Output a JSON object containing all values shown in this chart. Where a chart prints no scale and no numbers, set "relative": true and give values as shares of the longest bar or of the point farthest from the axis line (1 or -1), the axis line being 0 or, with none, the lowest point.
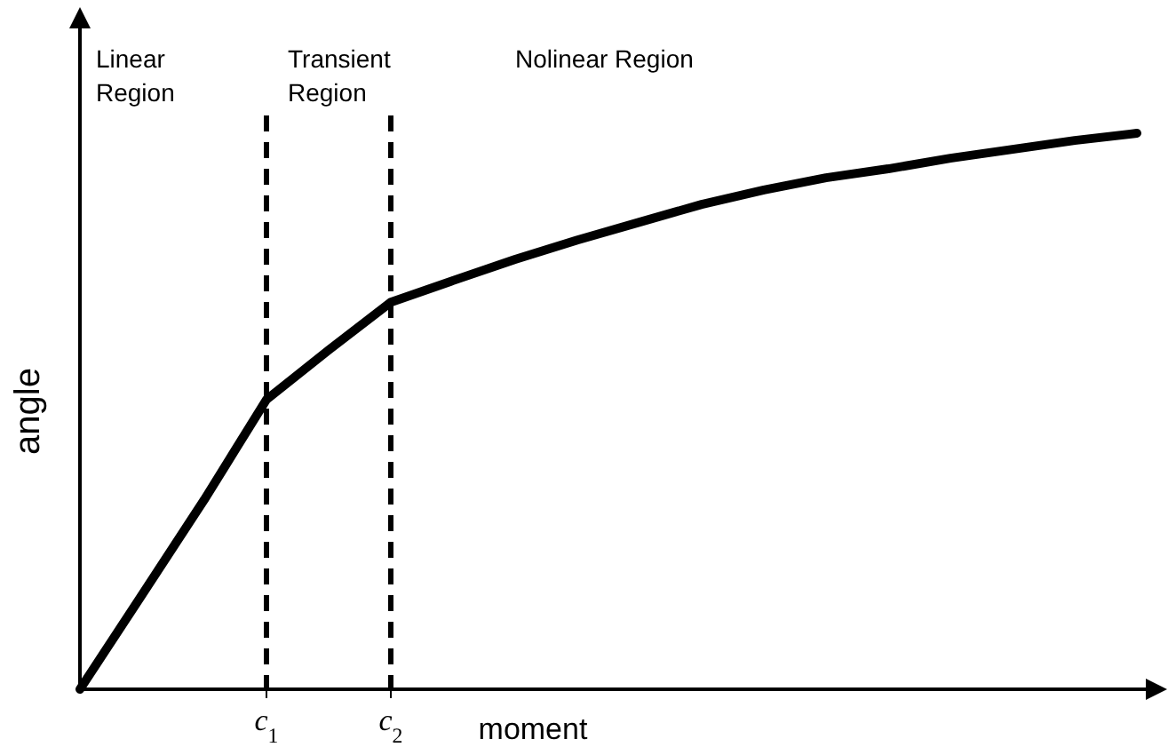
{
  "chart_data": {
    "type": "line",
    "relative": true,
    "xlabel": "moment",
    "ylabel": "angle",
    "annotations": [
      "Linear Region",
      "Transient Region",
      "Nolinear Region"
    ],
    "categories": [
      null,
      null,
      null,
      "c$_{1}$",
      null,
      "c$_{2}$",
      null,
      null,
      null,
      null,
      null,
      null,
      null,
      null,
      null,
      null,
      null,
      null
    ],
    "ref_lines": [
      {
        "axis": "x",
        "value": "c$_{1}$",
        "line_style": "dashed",
        "color": "#000000"
      },
      {
        "axis": "x",
        "value": "c$_{2}$",
        "line_style": "dashed",
        "color": "#000000"
      }
    ],
    "marker": "none",
    "line_style": "solid",
    "series": [
      {
        "color": "#000000",
        "values": [
          0,
          0.17,
          0.341,
          0.521,
          0.61,
          0.696,
          0.735,
          0.773,
          0.808,
          0.84,
          0.872,
          0.898,
          0.92,
          0.936,
          0.955,
          0.971,
          0.987,
          1
        ]
      }
    ]
  }
}
